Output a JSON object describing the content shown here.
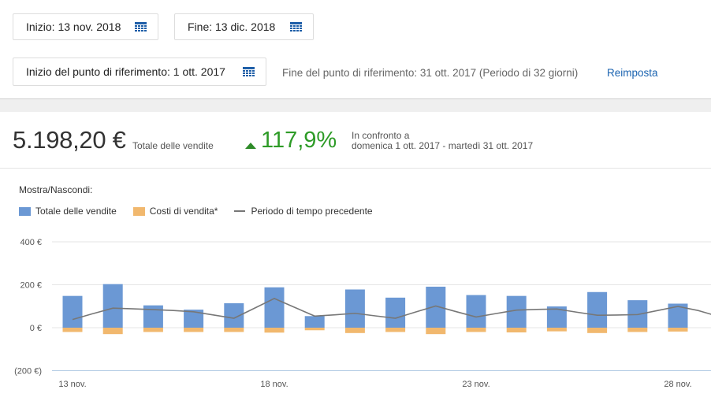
{
  "filters": {
    "start_label": "Inizio: 13 nov. 2018",
    "end_label": "Fine: 13 dic. 2018",
    "baseline_start_label": "Inizio del punto di riferimento: 1 ott. 2017",
    "baseline_end_text": "Fine del punto di riferimento: 31 ott. 2017 (Periodo di 32 giorni)",
    "reset_label": "Reimposta"
  },
  "summary": {
    "total_value": "5.198,20 €",
    "total_label": "Totale delle vendite",
    "change_pct": "117,9%",
    "compare_line1": "In confronto a",
    "compare_line2": "domenica 1 ott. 2017 - martedì 31 ott. 2017"
  },
  "legend": {
    "title": "Mostra/Nascondi:",
    "items": [
      {
        "label": "Totale delle vendite",
        "color": "#6b98d4"
      },
      {
        "label": "Costi di vendita*",
        "color": "#f1b86e"
      },
      {
        "label": "Periodo di tempo precedente",
        "color": "#777777"
      }
    ]
  },
  "chart_data": {
    "type": "bar",
    "y_tick_labels": [
      "400 €",
      "200 €",
      "0 €",
      "(200 €)"
    ],
    "y_ticks": [
      400,
      200,
      0,
      -200
    ],
    "ylim": [
      -200,
      400
    ],
    "x_tick_labels": [
      "13 nov.",
      "18 nov.",
      "23 nov.",
      "28 nov."
    ],
    "x_tick_every": 5,
    "series": [
      {
        "name": "Totale delle vendite",
        "color": "#6b98d4",
        "values": [
          148,
          0,
          203,
          0,
          104,
          0,
          84,
          0,
          114,
          0,
          188,
          0,
          54,
          0,
          178,
          0,
          140,
          0,
          191,
          0,
          152,
          0,
          148,
          0,
          99,
          0,
          166,
          0,
          128,
          0,
          112,
          0
        ]
      },
      {
        "name": "Costi di vendita*",
        "color": "#f1b86e",
        "values": [
          -20,
          0,
          -30,
          0,
          -20,
          0,
          -20,
          0,
          -20,
          0,
          -23,
          0,
          -12,
          0,
          -25,
          0,
          -20,
          0,
          -30,
          0,
          -20,
          0,
          -22,
          0,
          -17,
          0,
          -25,
          0,
          -20,
          0,
          -18,
          0
        ]
      },
      {
        "name": "Periodo di tempo precedente",
        "color": "#777777",
        "values": [
          38,
          65,
          91,
          88,
          84,
          80,
          74,
          59,
          44,
          90,
          136,
          95,
          54,
          60,
          67,
          55,
          44,
          73,
          101,
          75,
          50,
          66,
          82,
          85,
          87,
          72,
          58,
          59,
          61,
          80,
          99,
          80,
          53
        ]
      }
    ]
  }
}
